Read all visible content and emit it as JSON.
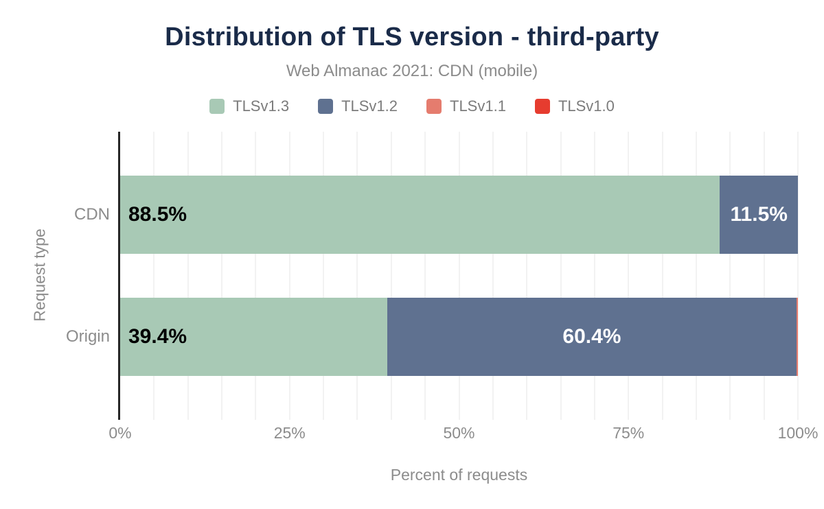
{
  "header": {
    "title": "Distribution of TLS version - third-party",
    "subtitle": "Web Almanac 2021: CDN (mobile)"
  },
  "chart_data": {
    "type": "bar",
    "orientation": "horizontal",
    "stacked": true,
    "title": "Distribution of TLS version - third-party",
    "subtitle": "Web Almanac 2021: CDN (mobile)",
    "categories": [
      "CDN",
      "Origin"
    ],
    "series": [
      {
        "name": "TLSv1.3",
        "color": "#a8c9b5",
        "label_color": "#000000",
        "values": [
          88.5,
          39.4
        ]
      },
      {
        "name": "TLSv1.2",
        "color": "#5f7190",
        "label_color": "#ffffff",
        "values": [
          11.5,
          60.4
        ]
      },
      {
        "name": "TLSv1.1",
        "color": "#e57c6e",
        "label_color": "#ffffff",
        "values": [
          0.0,
          0.2
        ]
      },
      {
        "name": "TLSv1.0",
        "color": "#e63c2f",
        "label_color": "#ffffff",
        "values": [
          0.0,
          0.0
        ]
      }
    ],
    "data_labels": [
      [
        "88.5%",
        "11.5%",
        "",
        ""
      ],
      [
        "39.4%",
        "60.4%",
        "",
        ""
      ]
    ],
    "xlabel": "Percent of requests",
    "ylabel": "Request type",
    "x_ticks": [
      "0%",
      "25%",
      "50%",
      "75%",
      "100%"
    ],
    "x_tick_values": [
      0,
      25,
      50,
      75,
      100
    ],
    "xlim": [
      0,
      100
    ],
    "gridline_step_pct": 5,
    "grid": true,
    "legend_position": "top"
  },
  "colors": {
    "title": "#1a2b49",
    "muted_text": "#8c8c8c",
    "axis_line": "#262626",
    "gridline": "#f2f2f2",
    "background": "#ffffff"
  }
}
